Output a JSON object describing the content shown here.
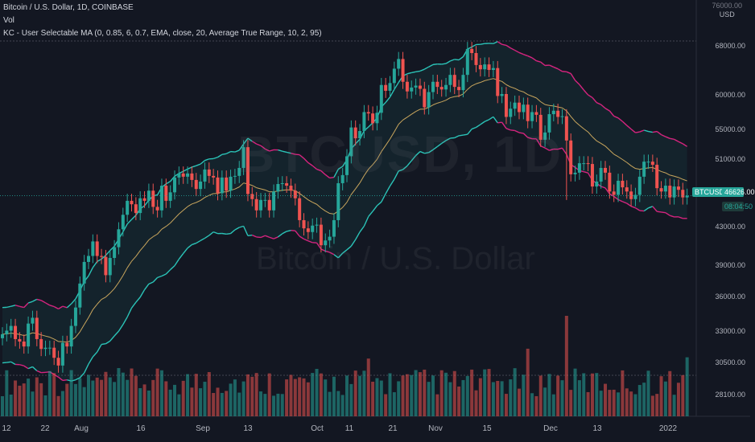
{
  "header": {
    "title": "Bitcoin / U.S. Dollar, 1D, COINBASE",
    "vol_label": "Vol",
    "indicator": "KC - User Selectable MA (0, 0.85, 6, 0.7, EMA, close, 20, Average True Range, 10, 2, 95)"
  },
  "watermark": {
    "symbol": "BTCUSD, 1D",
    "description": "Bitcoin / U.S. Dollar"
  },
  "price_axis": {
    "currency": "USD",
    "top_label": "76000.00",
    "ticks": [
      "68000.00",
      "60000.00",
      "55000.00",
      "51000.00",
      "43000.00",
      "39000.00",
      "36000.00",
      "33000.00",
      "30500.00",
      "28100.00"
    ]
  },
  "time_axis": {
    "ticks": [
      "12",
      "22",
      "Aug",
      "16",
      "Sep",
      "13",
      "Oct",
      "11",
      "21",
      "Nov",
      "15",
      "Dec",
      "13",
      "2022"
    ]
  },
  "last_price": {
    "symbol": "BTCUSD",
    "price": "46626.00",
    "countdown": "08:04:50"
  },
  "colors": {
    "up": "#26a69a",
    "down": "#ef5350",
    "band_cyan": "#2bc4b8",
    "band_magenta": "#d6247f",
    "background": "#131722"
  },
  "chart_data": {
    "type": "candlestick",
    "price_scale": "log",
    "ylim": [
      26500,
      76000
    ],
    "x_labels": [
      "12",
      "22",
      "Aug",
      "16",
      "Sep",
      "13",
      "Oct",
      "11",
      "21",
      "Nov",
      "15",
      "Dec",
      "13",
      "2022"
    ],
    "series": [
      {
        "name": "BTCUSD",
        "kind": "candles",
        "close": [
          32800,
          33100,
          33500,
          32400,
          32200,
          31800,
          33700,
          34200,
          32400,
          31600,
          31700,
          31700,
          30900,
          30300,
          32100,
          31800,
          33500,
          35100,
          37300,
          39400,
          40000,
          41500,
          40000,
          39900,
          38100,
          39800,
          40900,
          42800,
          44400,
          46000,
          45600,
          44600,
          46300,
          46000,
          47200,
          45300,
          44900,
          47800,
          46000,
          47000,
          48800,
          49300,
          48900,
          49300,
          48500,
          47400,
          48300,
          49800,
          49000,
          48800,
          46900,
          48800,
          47200,
          48900,
          49000,
          50000,
          52700,
          46800,
          46200,
          44900,
          46100,
          46100,
          44900,
          47100,
          48000,
          48100,
          47800,
          47200,
          46300,
          43800,
          42900,
          42500,
          43200,
          43300,
          41100,
          41600,
          42000,
          43800,
          48100,
          49100,
          51500,
          55400,
          53900,
          54900,
          57600,
          57400,
          56000,
          57500,
          61700,
          60800,
          62000,
          64300,
          65900,
          62200,
          60700,
          61300,
          61600,
          61100,
          58300,
          60600,
          62200,
          61400,
          61000,
          61700,
          63300,
          61400,
          60900,
          63300,
          67600,
          66900,
          64900,
          64200,
          65000,
          64100,
          64400,
          60000,
          60300,
          56900,
          58100,
          59000,
          57600,
          58700,
          56300,
          57600,
          57200,
          53700,
          54700,
          57300,
          57800,
          56900,
          57000,
          53600,
          49200,
          49400,
          50600,
          50600,
          50500,
          47700,
          48300,
          50000,
          49400,
          47100,
          46700,
          48400,
          47600,
          47100,
          46200,
          46700,
          48900,
          50800,
          50800,
          50400,
          47500,
          47100,
          47800,
          46400,
          47700,
          47300,
          46400,
          46600
        ]
      },
      {
        "name": "Volume",
        "kind": "bars"
      }
    ],
    "annotations": [
      "BTCUSD",
      "46626.00",
      "08:04:50"
    ]
  }
}
